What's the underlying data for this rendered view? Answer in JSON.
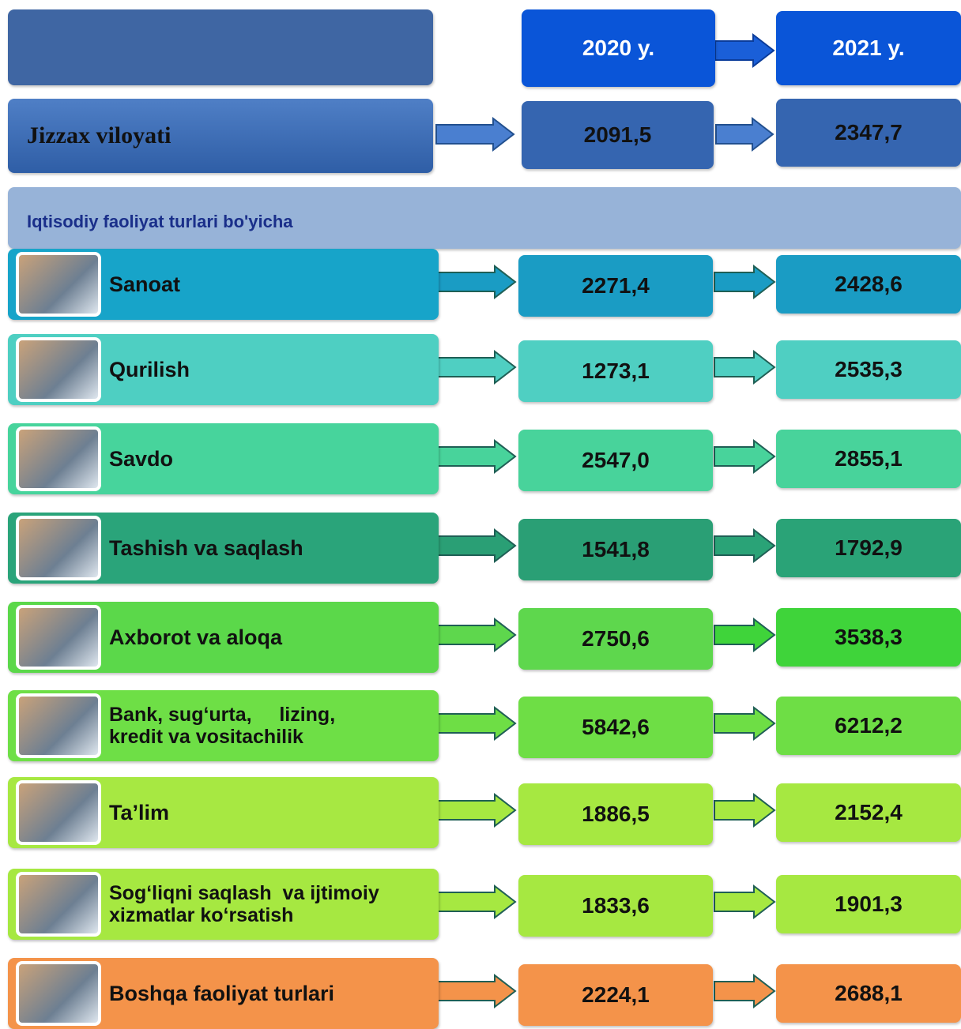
{
  "header": {
    "years": [
      "2020 y.",
      "2021 y."
    ]
  },
  "region": {
    "label": "Jizzax viloyati",
    "values": [
      "2091,5",
      "2347,7"
    ]
  },
  "section_title": "Iqtisodiy faoliyat turlari bo'yicha",
  "rows": [
    {
      "label_lines": [
        "Sanoat"
      ],
      "values": [
        "2271,4",
        "2428,6"
      ]
    },
    {
      "label_lines": [
        "Qurilish"
      ],
      "values": [
        "1273,1",
        "2535,3"
      ]
    },
    {
      "label_lines": [
        "Savdo"
      ],
      "values": [
        "2547,0",
        "2855,1"
      ]
    },
    {
      "label_lines": [
        "Tashish va saqlash"
      ],
      "values": [
        "1541,8",
        "1792,9"
      ]
    },
    {
      "label_lines": [
        "Axborot va aloqa"
      ],
      "values": [
        "2750,6",
        "3538,3"
      ]
    },
    {
      "label_lines": [
        "Bank, sug‘urta,     lizing,",
        "kredit va vositachilik"
      ],
      "values": [
        "5842,6",
        "6212,2"
      ]
    },
    {
      "label_lines": [
        "Ta’lim"
      ],
      "values": [
        "1886,5",
        "2152,4"
      ]
    },
    {
      "label_lines": [
        "Sog‘liqni saqlash  va ijtimoiy",
        "xizmatlar ko‘rsatish"
      ],
      "values": [
        "1833,6",
        "1901,3"
      ]
    },
    {
      "label_lines": [
        "Boshqa faoliyat turlari"
      ],
      "values": [
        "2224,1",
        "2688,1"
      ]
    }
  ]
}
